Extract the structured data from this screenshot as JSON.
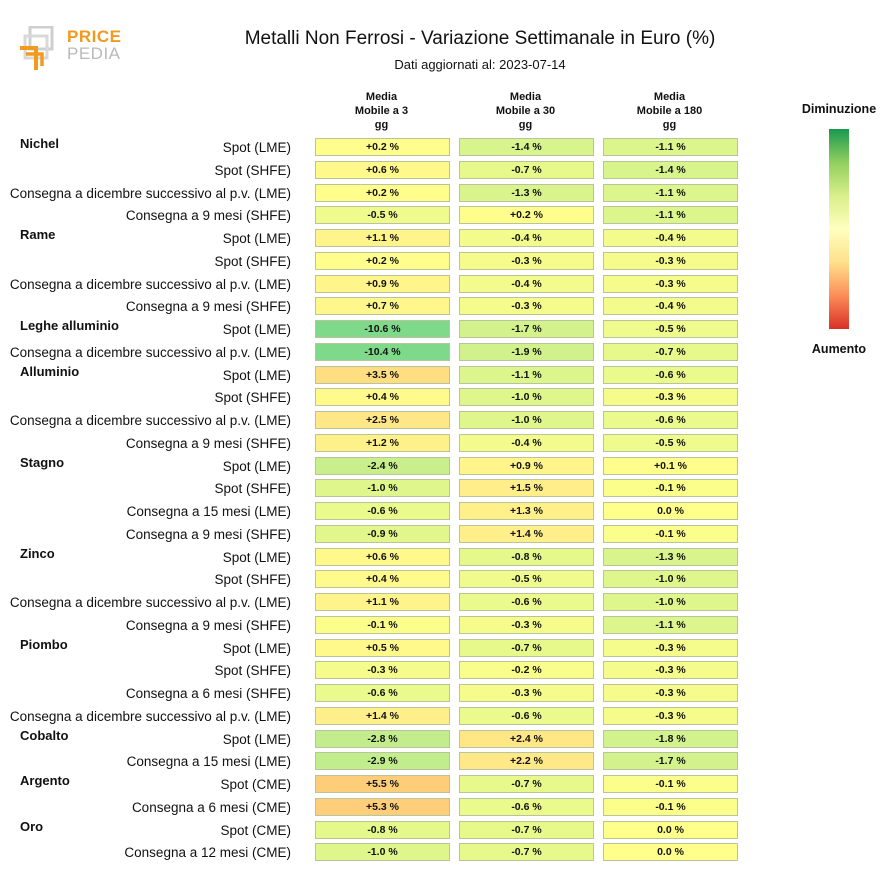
{
  "header": {
    "logo_top": "PRICE",
    "logo_bottom": "PEDIA",
    "title": "Metalli Non Ferrosi - Variazione Settimanale in Euro (%)",
    "subtitle": "Dati aggiornati al: 2023-07-14"
  },
  "legend": {
    "top_label": "Diminuzione",
    "bottom_label": "Aumento",
    "colors": [
      "#1a9850",
      "#91cf60",
      "#d9ef8b",
      "#ffffbf",
      "#fee08b",
      "#fc8d59",
      "#d73027"
    ]
  },
  "chart_data": {
    "type": "heatmap",
    "title": "Metalli Non Ferrosi - Variazione Settimanale in Euro (%)",
    "subtitle": "Dati aggiornati al: 2023-07-14",
    "columns": [
      "Media\nMobile a 3\ngg",
      "Media\nMobile a 30\ngg",
      "Media\nMobile a 180\ngg"
    ],
    "color_scale": {
      "min": -15,
      "max": 15,
      "low_label": "Diminuzione",
      "high_label": "Aumento"
    },
    "groups": [
      {
        "name": "Nichel",
        "rows": [
          {
            "label": "Spot (LME)",
            "values": [
              0.2,
              -1.4,
              -1.1
            ],
            "text": [
              "+0.2 %",
              "-1.4 %",
              "-1.1 %"
            ]
          },
          {
            "label": "Spot (SHFE)",
            "values": [
              0.6,
              -0.7,
              -1.4
            ],
            "text": [
              "+0.6 %",
              "-0.7 %",
              "-1.4 %"
            ]
          },
          {
            "label": "Consegna a dicembre successivo al p.v. (LME)",
            "values": [
              0.2,
              -1.3,
              -1.1
            ],
            "text": [
              "+0.2 %",
              "-1.3 %",
              "-1.1 %"
            ]
          },
          {
            "label": "Consegna a 9 mesi (SHFE)",
            "values": [
              -0.5,
              0.2,
              -1.1
            ],
            "text": [
              "-0.5 %",
              "+0.2 %",
              "-1.1 %"
            ]
          }
        ]
      },
      {
        "name": "Rame",
        "rows": [
          {
            "label": "Spot (LME)",
            "values": [
              1.1,
              -0.4,
              -0.4
            ],
            "text": [
              "+1.1 %",
              "-0.4 %",
              "-0.4 %"
            ]
          },
          {
            "label": "Spot (SHFE)",
            "values": [
              0.2,
              -0.3,
              -0.3
            ],
            "text": [
              "+0.2 %",
              "-0.3 %",
              "-0.3 %"
            ]
          },
          {
            "label": "Consegna a dicembre successivo al p.v. (LME)",
            "values": [
              0.9,
              -0.4,
              -0.3
            ],
            "text": [
              "+0.9 %",
              "-0.4 %",
              "-0.3 %"
            ]
          },
          {
            "label": "Consegna a 9 mesi (SHFE)",
            "values": [
              0.7,
              -0.3,
              -0.4
            ],
            "text": [
              "+0.7 %",
              "-0.3 %",
              "-0.4 %"
            ]
          }
        ]
      },
      {
        "name": "Leghe alluminio",
        "rows": [
          {
            "label": "Spot (LME)",
            "values": [
              -10.6,
              -1.7,
              -0.5
            ],
            "text": [
              "-10.6 %",
              "-1.7 %",
              "-0.5 %"
            ]
          },
          {
            "label": "Consegna a dicembre successivo al p.v. (LME)",
            "values": [
              -10.4,
              -1.9,
              -0.7
            ],
            "text": [
              "-10.4 %",
              "-1.9 %",
              "-0.7 %"
            ]
          }
        ]
      },
      {
        "name": "Alluminio",
        "rows": [
          {
            "label": "Spot (LME)",
            "values": [
              3.5,
              -1.1,
              -0.6
            ],
            "text": [
              "+3.5 %",
              "-1.1 %",
              "-0.6 %"
            ]
          },
          {
            "label": "Spot (SHFE)",
            "values": [
              0.4,
              -1.0,
              -0.3
            ],
            "text": [
              "+0.4 %",
              "-1.0 %",
              "-0.3 %"
            ]
          },
          {
            "label": "Consegna a dicembre successivo al p.v. (LME)",
            "values": [
              2.5,
              -1.0,
              -0.6
            ],
            "text": [
              "+2.5 %",
              "-1.0 %",
              "-0.6 %"
            ]
          },
          {
            "label": "Consegna a 9 mesi (SHFE)",
            "values": [
              1.2,
              -0.4,
              -0.5
            ],
            "text": [
              "+1.2 %",
              "-0.4 %",
              "-0.5 %"
            ]
          }
        ]
      },
      {
        "name": "Stagno",
        "rows": [
          {
            "label": "Spot (LME)",
            "values": [
              -2.4,
              0.9,
              0.1
            ],
            "text": [
              "-2.4 %",
              "+0.9 %",
              "+0.1 %"
            ]
          },
          {
            "label": "Spot (SHFE)",
            "values": [
              -1.0,
              1.5,
              -0.1
            ],
            "text": [
              "-1.0 %",
              "+1.5 %",
              "-0.1 %"
            ]
          },
          {
            "label": "Consegna a 15 mesi (LME)",
            "values": [
              -0.6,
              1.3,
              0.0
            ],
            "text": [
              "-0.6 %",
              "+1.3 %",
              "0.0 %"
            ]
          },
          {
            "label": "Consegna a 9 mesi (SHFE)",
            "values": [
              -0.9,
              1.4,
              -0.1
            ],
            "text": [
              "-0.9 %",
              "+1.4 %",
              "-0.1 %"
            ]
          }
        ]
      },
      {
        "name": "Zinco",
        "rows": [
          {
            "label": "Spot (LME)",
            "values": [
              0.6,
              -0.8,
              -1.3
            ],
            "text": [
              "+0.6 %",
              "-0.8 %",
              "-1.3 %"
            ]
          },
          {
            "label": "Spot (SHFE)",
            "values": [
              0.4,
              -0.5,
              -1.0
            ],
            "text": [
              "+0.4 %",
              "-0.5 %",
              "-1.0 %"
            ]
          },
          {
            "label": "Consegna a dicembre successivo al p.v. (LME)",
            "values": [
              1.1,
              -0.6,
              -1.0
            ],
            "text": [
              "+1.1 %",
              "-0.6 %",
              "-1.0 %"
            ]
          },
          {
            "label": "Consegna a 9 mesi (SHFE)",
            "values": [
              -0.1,
              -0.3,
              -1.1
            ],
            "text": [
              "-0.1 %",
              "-0.3 %",
              "-1.1 %"
            ]
          }
        ]
      },
      {
        "name": "Piombo",
        "rows": [
          {
            "label": "Spot (LME)",
            "values": [
              0.5,
              -0.7,
              -0.3
            ],
            "text": [
              "+0.5 %",
              "-0.7 %",
              "-0.3 %"
            ]
          },
          {
            "label": "Spot (SHFE)",
            "values": [
              -0.3,
              -0.2,
              -0.3
            ],
            "text": [
              "-0.3 %",
              "-0.2 %",
              "-0.3 %"
            ]
          },
          {
            "label": "Consegna a 6 mesi (SHFE)",
            "values": [
              -0.6,
              -0.3,
              -0.3
            ],
            "text": [
              "-0.6 %",
              "-0.3 %",
              "-0.3 %"
            ]
          },
          {
            "label": "Consegna a dicembre successivo al p.v. (LME)",
            "values": [
              1.4,
              -0.6,
              -0.3
            ],
            "text": [
              "+1.4 %",
              "-0.6 %",
              "-0.3 %"
            ]
          }
        ]
      },
      {
        "name": "Cobalto",
        "rows": [
          {
            "label": "Spot (LME)",
            "values": [
              -2.8,
              2.4,
              -1.8
            ],
            "text": [
              "-2.8 %",
              "+2.4 %",
              "-1.8 %"
            ]
          },
          {
            "label": "Consegna a 15 mesi (LME)",
            "values": [
              -2.9,
              2.2,
              -1.7
            ],
            "text": [
              "-2.9 %",
              "+2.2 %",
              "-1.7 %"
            ]
          }
        ]
      },
      {
        "name": "Argento",
        "rows": [
          {
            "label": "Spot (CME)",
            "values": [
              5.5,
              -0.7,
              -0.1
            ],
            "text": [
              "+5.5 %",
              "-0.7 %",
              "-0.1 %"
            ]
          },
          {
            "label": "Consegna a 6 mesi (CME)",
            "values": [
              5.3,
              -0.6,
              -0.1
            ],
            "text": [
              "+5.3 %",
              "-0.6 %",
              "-0.1 %"
            ]
          }
        ]
      },
      {
        "name": "Oro",
        "rows": [
          {
            "label": "Spot (CME)",
            "values": [
              -0.8,
              -0.7,
              0.0
            ],
            "text": [
              "-0.8 %",
              "-0.7 %",
              "0.0 %"
            ]
          },
          {
            "label": "Consegna a 12 mesi (CME)",
            "values": [
              -1.0,
              -0.7,
              0.0
            ],
            "text": [
              "-1.0 %",
              "-0.7 %",
              "0.0 %"
            ]
          }
        ]
      }
    ]
  }
}
